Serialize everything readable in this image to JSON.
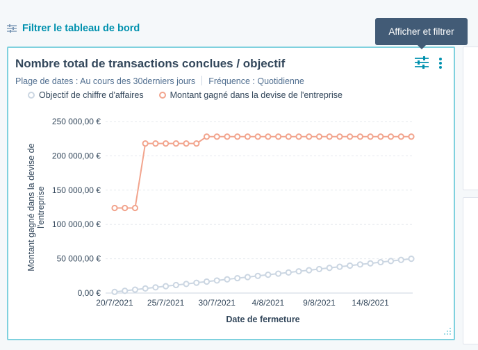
{
  "toolbar": {
    "filter_label": "Filtrer le tableau de bord"
  },
  "tooltip": {
    "text": "Afficher et filtrer"
  },
  "card": {
    "title": "Nombre total de transactions conclues / objectif",
    "date_range": "Plage de dates : Au cours des 30derniers jours",
    "frequency": "Fréquence : Quotidienne",
    "legend": [
      {
        "label": "Objectif de chiffre d'affaires",
        "color": "#cbd6e2"
      },
      {
        "label": "Montant gagné dans la devise de l'entreprise",
        "color": "#f2a48d"
      }
    ]
  },
  "colors": {
    "accent": "#0091ae",
    "tooltip_bg": "#425b76",
    "card_border": "#7fd1de",
    "text": "#33475b"
  },
  "icons": [
    "sliders-icon",
    "more-vertical-icon",
    "resize-icon"
  ],
  "chart_data": {
    "type": "line",
    "xlabel": "Date de fermeture",
    "ylabel": "Montant gagné dans la devise de l'entreprise",
    "ylabel_lines": [
      "Montant gagné dans la devise de",
      "l'entreprise"
    ],
    "ylim": [
      0,
      250000
    ],
    "yticks": [
      0,
      50000,
      100000,
      150000,
      200000,
      250000
    ],
    "ytick_labels": [
      "0,00 €",
      "50 000,00 €",
      "100 000,00 €",
      "150 000,00 €",
      "200 000,00 €",
      "250 000,00 €"
    ],
    "x": [
      "20/7/2021",
      "21/7/2021",
      "22/7/2021",
      "23/7/2021",
      "24/7/2021",
      "25/7/2021",
      "26/7/2021",
      "27/7/2021",
      "28/7/2021",
      "29/7/2021",
      "30/7/2021",
      "31/7/2021",
      "1/8/2021",
      "2/8/2021",
      "3/8/2021",
      "4/8/2021",
      "5/8/2021",
      "6/8/2021",
      "7/8/2021",
      "8/8/2021",
      "9/8/2021",
      "10/8/2021",
      "11/8/2021",
      "12/8/2021",
      "13/8/2021",
      "14/8/2021",
      "15/8/2021",
      "16/8/2021",
      "17/8/2021",
      "18/8/2021"
    ],
    "xtick_labels": [
      "20/7/2021",
      "25/7/2021",
      "30/7/2021",
      "4/8/2021",
      "9/8/2021",
      "14/8/2021"
    ],
    "grid": true,
    "legend_position": "top-left",
    "series": [
      {
        "name": "Objectif de chiffre d'affaires",
        "color": "#cbd6e2",
        "values": [
          1700,
          3300,
          5000,
          6700,
          8300,
          10000,
          11700,
          13300,
          15000,
          16700,
          18300,
          20000,
          21700,
          23300,
          25000,
          26700,
          28300,
          30000,
          31700,
          33300,
          35000,
          36700,
          38300,
          40000,
          41700,
          43300,
          45000,
          46700,
          48300,
          50000
        ]
      },
      {
        "name": "Montant gagné dans la devise de l'entreprise",
        "color": "#f2a48d",
        "values": [
          124000,
          124000,
          124000,
          218000,
          218000,
          218000,
          218000,
          218000,
          218000,
          228000,
          228000,
          228000,
          228000,
          228000,
          228000,
          228000,
          228000,
          228000,
          228000,
          228000,
          228000,
          228000,
          228000,
          228000,
          228000,
          228000,
          228000,
          228000,
          228000,
          228000
        ]
      }
    ]
  }
}
